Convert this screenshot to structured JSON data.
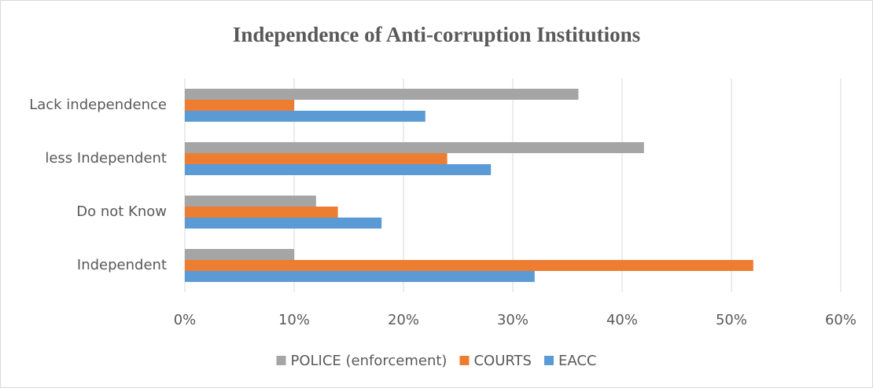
{
  "chart_data": {
    "type": "bar",
    "orientation": "horizontal",
    "title": "Independence of Anti-corruption Institutions",
    "categories": [
      "Independent",
      "Do not Know",
      "less Independent",
      "Lack independence"
    ],
    "series": [
      {
        "name": "POLICE (enforcement)",
        "color": "#a5a5a5",
        "values": [
          10,
          12,
          42,
          36
        ]
      },
      {
        "name": "COURTS",
        "color": "#ed7d31",
        "values": [
          52,
          14,
          24,
          10
        ]
      },
      {
        "name": "EACC",
        "color": "#5b9bd5",
        "values": [
          32,
          18,
          28,
          22
        ]
      }
    ],
    "xlim": [
      0,
      60
    ],
    "xticks": [
      {
        "value": 0,
        "label": "0%"
      },
      {
        "value": 10,
        "label": "10%"
      },
      {
        "value": 20,
        "label": "20%"
      },
      {
        "value": 30,
        "label": "30%"
      },
      {
        "value": 40,
        "label": "40%"
      },
      {
        "value": 50,
        "label": "50%"
      },
      {
        "value": 60,
        "label": "60%"
      }
    ],
    "grid": true,
    "legend": "bottom"
  }
}
